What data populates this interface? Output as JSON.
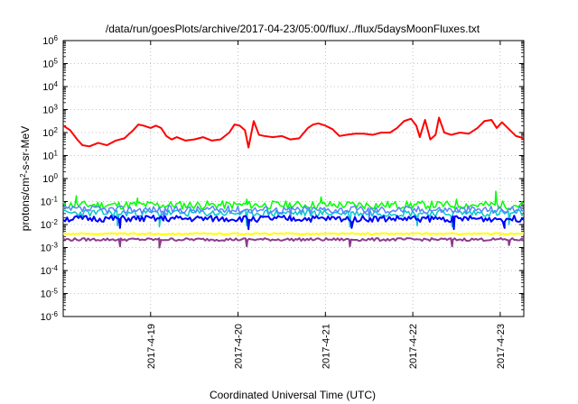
{
  "chart_data": {
    "type": "line",
    "title": "/data/run/goesPlots/archive/2017-04-23/05:00/flux/../flux/5daysMoonFluxes.txt",
    "xlabel": "Coordinated Universal Time (UTC)",
    "ylabel": "protons/cm²-s-sr-MeV",
    "ylabel_parts": {
      "pre": "protons/cm",
      "sup": "2",
      "post": "-s-sr-MeV"
    },
    "y_scale": "log",
    "ylim_exp": [
      -6,
      6
    ],
    "y_ticks": [
      {
        "base": "10",
        "exp": "-6",
        "value": -6
      },
      {
        "base": "10",
        "exp": "-5",
        "value": -5
      },
      {
        "base": "10",
        "exp": "-4",
        "value": -4
      },
      {
        "base": "10",
        "exp": "-3",
        "value": -3
      },
      {
        "base": "10",
        "exp": "-2",
        "value": -2
      },
      {
        "base": "10",
        "exp": "-1",
        "value": -1
      },
      {
        "base": "10",
        "exp": "0",
        "value": 0
      },
      {
        "base": "10",
        "exp": "1",
        "value": 1
      },
      {
        "base": "10",
        "exp": "2",
        "value": 2
      },
      {
        "base": "10",
        "exp": "3",
        "value": 3
      },
      {
        "base": "10",
        "exp": "4",
        "value": 4
      },
      {
        "base": "10",
        "exp": "5",
        "value": 5
      },
      {
        "base": "10",
        "exp": "6",
        "value": 6
      }
    ],
    "xlim_days": [
      18.0,
      23.27
    ],
    "x_ticks": [
      {
        "label": "2017-4-19",
        "day": 19
      },
      {
        "label": "2017-4-20",
        "day": 20
      },
      {
        "label": "2017-4-21",
        "day": 21
      },
      {
        "label": "2017-4-22",
        "day": 22
      },
      {
        "label": "2017-4-23",
        "day": 23
      }
    ],
    "grid": true,
    "series": [
      {
        "color": "#ff0000",
        "width": 2,
        "points": [
          [
            18.0,
            2.3
          ],
          [
            18.08,
            2.1
          ],
          [
            18.16,
            1.7
          ],
          [
            18.22,
            1.45
          ],
          [
            18.3,
            1.4
          ],
          [
            18.4,
            1.55
          ],
          [
            18.5,
            1.45
          ],
          [
            18.6,
            1.65
          ],
          [
            18.7,
            1.75
          ],
          [
            18.8,
            2.1
          ],
          [
            18.86,
            2.35
          ],
          [
            18.92,
            2.3
          ],
          [
            19.0,
            2.2
          ],
          [
            19.06,
            2.3
          ],
          [
            19.12,
            2.2
          ],
          [
            19.18,
            1.85
          ],
          [
            19.24,
            1.7
          ],
          [
            19.3,
            1.8
          ],
          [
            19.4,
            1.65
          ],
          [
            19.5,
            1.7
          ],
          [
            19.6,
            1.8
          ],
          [
            19.7,
            1.65
          ],
          [
            19.8,
            1.7
          ],
          [
            19.9,
            2.0
          ],
          [
            19.96,
            2.35
          ],
          [
            20.02,
            2.3
          ],
          [
            20.08,
            2.1
          ],
          [
            20.12,
            1.35
          ],
          [
            20.18,
            2.5
          ],
          [
            20.24,
            1.9
          ],
          [
            20.3,
            1.85
          ],
          [
            20.4,
            1.8
          ],
          [
            20.5,
            1.85
          ],
          [
            20.6,
            1.7
          ],
          [
            20.7,
            1.75
          ],
          [
            20.8,
            2.2
          ],
          [
            20.86,
            2.35
          ],
          [
            20.92,
            2.4
          ],
          [
            21.0,
            2.3
          ],
          [
            21.08,
            2.15
          ],
          [
            21.16,
            1.85
          ],
          [
            21.24,
            1.9
          ],
          [
            21.34,
            1.95
          ],
          [
            21.44,
            1.95
          ],
          [
            21.54,
            1.9
          ],
          [
            21.64,
            2.0
          ],
          [
            21.74,
            2.0
          ],
          [
            21.82,
            2.2
          ],
          [
            21.9,
            2.5
          ],
          [
            21.98,
            2.6
          ],
          [
            22.04,
            2.3
          ],
          [
            22.08,
            1.8
          ],
          [
            22.14,
            2.55
          ],
          [
            22.2,
            1.7
          ],
          [
            22.26,
            1.9
          ],
          [
            22.3,
            2.65
          ],
          [
            22.36,
            2.0
          ],
          [
            22.44,
            1.9
          ],
          [
            22.54,
            2.0
          ],
          [
            22.64,
            1.95
          ],
          [
            22.74,
            2.2
          ],
          [
            22.82,
            2.5
          ],
          [
            22.9,
            2.55
          ],
          [
            22.96,
            2.2
          ],
          [
            23.02,
            2.45
          ],
          [
            23.1,
            2.15
          ],
          [
            23.18,
            1.85
          ],
          [
            23.27,
            1.75
          ]
        ]
      },
      {
        "color": "#00ff00",
        "width": 1.5,
        "base": -1.15,
        "amp": 0.18,
        "seed": 11,
        "spikes": [
          [
            18.15,
            -0.75
          ],
          [
            18.85,
            -0.85
          ],
          [
            20.1,
            -0.9
          ],
          [
            20.95,
            -0.8
          ],
          [
            22.5,
            -0.9
          ],
          [
            22.95,
            -0.55
          ]
        ],
        "dips": []
      },
      {
        "color": "#00c8c8",
        "width": 1.5,
        "base": -1.5,
        "amp": 0.16,
        "seed": 23,
        "spikes": [],
        "dips": [
          [
            18.62,
            -2.05
          ],
          [
            19.1,
            -2.1
          ],
          [
            20.1,
            -2.05
          ],
          [
            21.28,
            -2.1
          ],
          [
            22.05,
            -2.05
          ],
          [
            22.45,
            -2.1
          ],
          [
            23.1,
            -2.0
          ]
        ]
      },
      {
        "color": "#5a82ff",
        "width": 1.5,
        "base": -1.35,
        "amp": 0.17,
        "seed": 37,
        "spikes": [],
        "dips": [
          [
            19.15,
            -1.85
          ],
          [
            20.6,
            -1.8
          ],
          [
            21.5,
            -1.85
          ]
        ]
      },
      {
        "color": "#0000ff",
        "width": 2,
        "base": -1.75,
        "amp": 0.14,
        "seed": 51,
        "spikes": [],
        "dips": [
          [
            18.65,
            -2.15
          ],
          [
            20.12,
            -2.2
          ],
          [
            21.3,
            -2.15
          ],
          [
            22.47,
            -2.2
          ],
          [
            23.05,
            -2.15
          ]
        ]
      },
      {
        "color": "#ffff00",
        "width": 2,
        "base": -2.4,
        "amp": 0.03,
        "seed": 63,
        "spikes": [],
        "dips": []
      },
      {
        "color": "#8c3c8c",
        "width": 2,
        "base": -2.65,
        "amp": 0.06,
        "seed": 79,
        "spikes": [],
        "dips": [
          [
            18.65,
            -2.95
          ],
          [
            19.1,
            -3.0
          ],
          [
            20.1,
            -2.95
          ],
          [
            21.28,
            -2.95
          ],
          [
            22.45,
            -2.95
          ],
          [
            23.1,
            -2.9
          ]
        ]
      }
    ]
  }
}
